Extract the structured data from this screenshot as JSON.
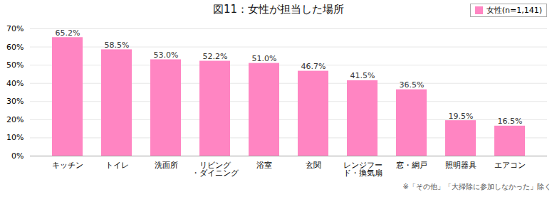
{
  "chart_data": {
    "type": "bar",
    "title": "図11：女性が担当した場所",
    "categories": [
      "キッチン",
      "トイレ",
      "洗面所",
      "リビング\n・ダイニング",
      "浴室",
      "玄関",
      "レンジフー\nド・換気扇",
      "窓・網戸",
      "照明器具",
      "エアコン"
    ],
    "series": [
      {
        "name": "女性(n=1,141)",
        "color": "#FF85C2",
        "values": [
          65.2,
          58.5,
          53.0,
          52.2,
          51.0,
          46.7,
          41.5,
          36.5,
          19.5,
          16.5
        ],
        "value_labels": [
          "65.2%",
          "58.5%",
          "53.0%",
          "52.2%",
          "51.0%",
          "46.7%",
          "41.5%",
          "36.5%",
          "19.5%",
          "16.5%"
        ]
      }
    ],
    "ylim": [
      0,
      70
    ],
    "yticks": [
      {
        "value": 0,
        "label": "0%"
      },
      {
        "value": 10,
        "label": "10%"
      },
      {
        "value": 20,
        "label": "20%"
      },
      {
        "value": 30,
        "label": "30%"
      },
      {
        "value": 40,
        "label": "40%"
      },
      {
        "value": 50,
        "label": "50%"
      },
      {
        "value": 60,
        "label": "60%"
      },
      {
        "value": 70,
        "label": "70%"
      }
    ],
    "grid": true,
    "legend": "upper right",
    "data_labels": true,
    "annotations": [
      "※「その他」「大掃除に参加しなかった」除く"
    ]
  }
}
